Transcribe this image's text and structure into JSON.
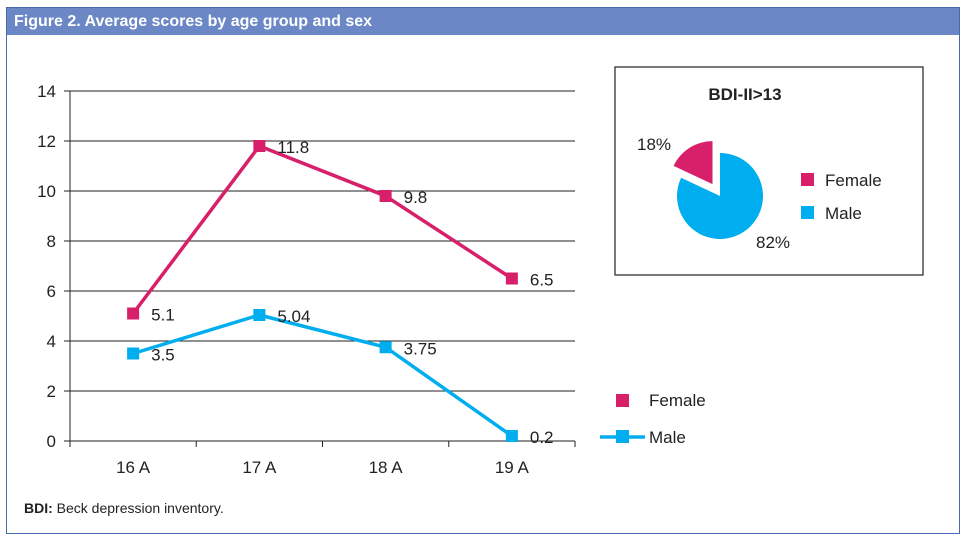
{
  "figure_title": "Figure 2.  Average scores by age group and sex",
  "footnote": {
    "abbr": "BDI:",
    "text": " Beck depression inventory."
  },
  "chart_data": [
    {
      "type": "line",
      "categories": [
        "16 A",
        "17 A",
        "18 A",
        "19 A"
      ],
      "ylim": [
        0,
        14
      ],
      "yticks": [
        0,
        2,
        4,
        6,
        8,
        10,
        12,
        14
      ],
      "grid": true,
      "legend": "bottom-right",
      "series": [
        {
          "name": "Female",
          "color": "#d81f6a",
          "values": [
            5.1,
            11.8,
            9.8,
            6.5
          ],
          "labels": [
            "5.1",
            "11.8",
            "9.8",
            "6.5"
          ]
        },
        {
          "name": "Male",
          "color": "#00aeef",
          "values": [
            3.5,
            5.04,
            3.75,
            0.2
          ],
          "labels": [
            "3.5",
            "5.04",
            "3.75",
            "0.2"
          ]
        }
      ]
    },
    {
      "type": "pie",
      "title": "BDI-II>13",
      "legend": "right",
      "slices": [
        {
          "name": "Female",
          "value": 18,
          "label": "18%",
          "color": "#d81f6a",
          "exploded": true
        },
        {
          "name": "Male",
          "value": 82,
          "label": "82%",
          "color": "#00aeef"
        }
      ]
    }
  ]
}
